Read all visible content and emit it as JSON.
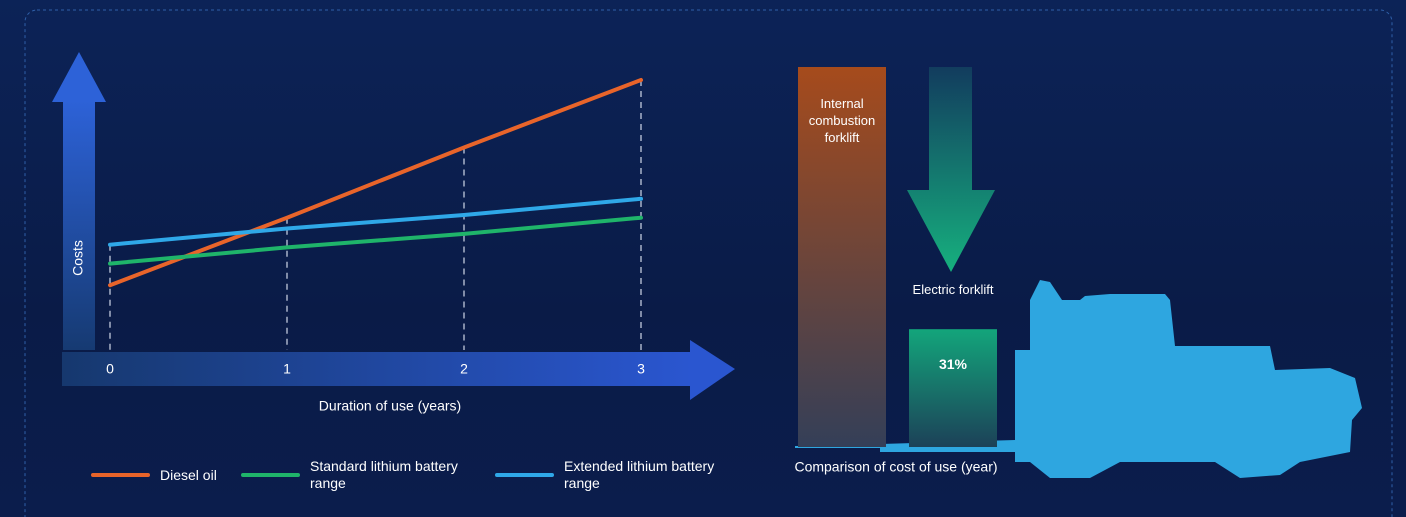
{
  "chart_data": [
    {
      "type": "line",
      "y_label": "Costs",
      "x_label": "Duration of use (years)",
      "x": [
        0,
        1,
        2,
        3
      ],
      "xlim": [
        0,
        3
      ],
      "xticks": [
        0,
        1,
        2,
        3
      ],
      "ylim": [
        0,
        100
      ],
      "series": [
        {
          "name": "Diesel oil",
          "color": "#e8642a",
          "values": [
            24,
            49,
            75,
            100
          ]
        },
        {
          "name": "Standard lithium battery range",
          "color": "#1fb46a",
          "values": [
            32,
            38,
            43,
            49
          ]
        },
        {
          "name": "Extended lithium battery range",
          "color": "#2fa8e8",
          "values": [
            39,
            45,
            50,
            56
          ]
        }
      ]
    },
    {
      "type": "bar",
      "x_label": "Comparison of cost of use (year)",
      "categories": [
        "Internal combustion forklift",
        "Electric forklift"
      ],
      "values": [
        100,
        31
      ],
      "value_labels": [
        null,
        "31%"
      ],
      "colors": [
        "#a64b1c",
        "#13a57b"
      ],
      "ylim": [
        0,
        100
      ]
    }
  ]
}
